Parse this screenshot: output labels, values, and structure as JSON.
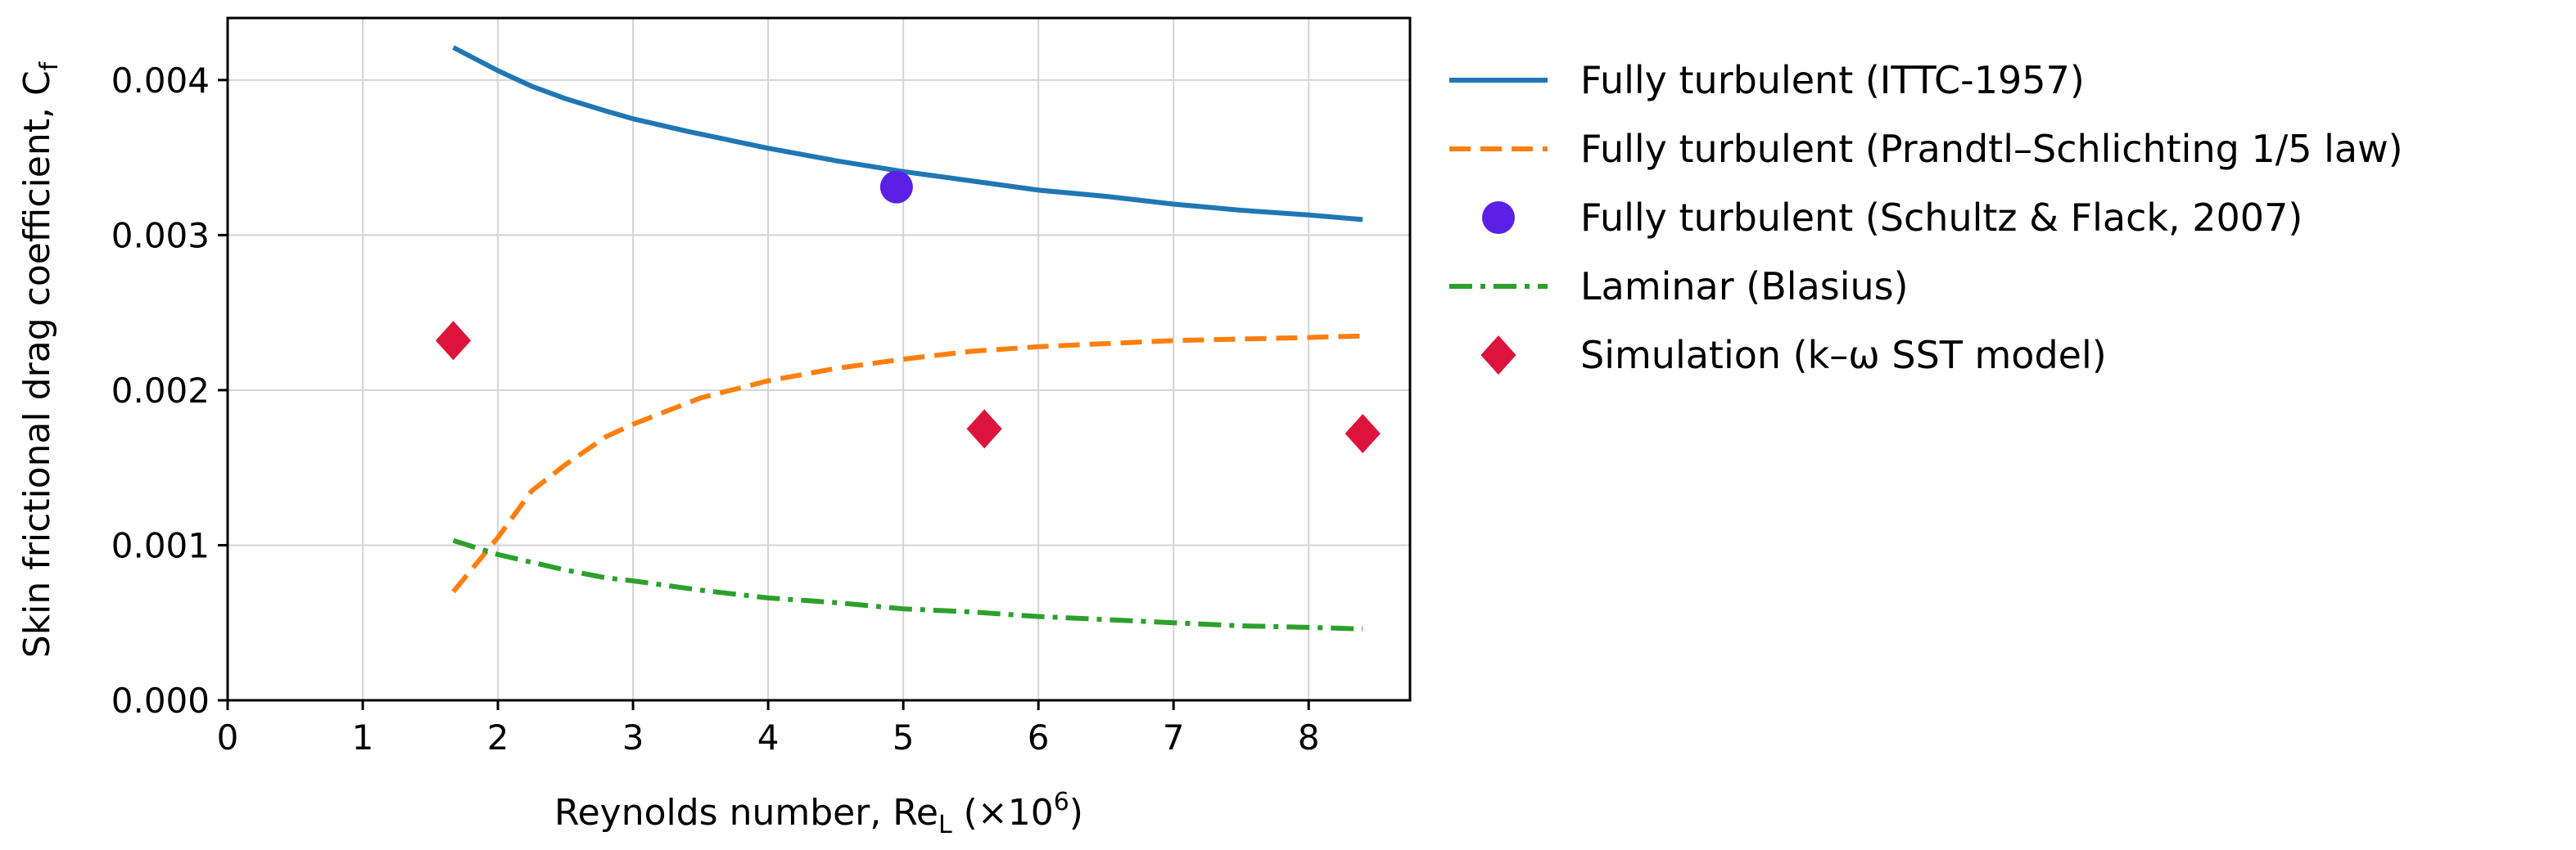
{
  "chart_data": {
    "type": "line",
    "xlabel": "Reynolds number, Re",
    "xlabel_sub": "L",
    "xlabel_unit": " (×10",
    "xlabel_exp": "6",
    "xlabel_close": ")",
    "ylabel": "Skin frictional drag coefficient, C",
    "ylabel_sub": "f",
    "xlim": [
      0,
      8.75
    ],
    "ylim": [
      0,
      0.0044
    ],
    "xticks": [
      "0",
      "1",
      "2",
      "3",
      "4",
      "5",
      "6",
      "7",
      "8"
    ],
    "yticks": [
      "0.000",
      "0.001",
      "0.002",
      "0.003",
      "0.004"
    ],
    "grid": true,
    "legend_position": "outside-right",
    "series": [
      {
        "name": "Fully turbulent (ITTC-1957)",
        "kind": "line",
        "style": "solid",
        "color": "#1f77b4",
        "x": [
          1.67,
          2.0,
          2.25,
          2.5,
          2.8,
          3.0,
          3.4,
          4.0,
          4.5,
          5.0,
          5.5,
          6.0,
          6.5,
          7.0,
          7.5,
          8.0,
          8.4
        ],
        "y": [
          0.00421,
          0.00406,
          0.00396,
          0.00388,
          0.0038,
          0.00375,
          0.00367,
          0.00356,
          0.00348,
          0.00341,
          0.00335,
          0.00329,
          0.00325,
          0.0032,
          0.00316,
          0.00313,
          0.0031
        ]
      },
      {
        "name": "Fully turbulent (Prandtl–Schlichting 1/5 law)",
        "kind": "line",
        "style": "dashed",
        "color": "#ff7f0e",
        "x": [
          1.67,
          2.0,
          2.25,
          2.5,
          2.8,
          3.0,
          3.5,
          4.0,
          4.5,
          5.0,
          5.5,
          6.0,
          6.5,
          7.0,
          7.5,
          8.0,
          8.4
        ],
        "y": [
          0.0007,
          0.00105,
          0.00135,
          0.00152,
          0.0017,
          0.00178,
          0.00195,
          0.00206,
          0.00214,
          0.0022,
          0.00225,
          0.00228,
          0.0023,
          0.00232,
          0.00233,
          0.00234,
          0.00235
        ]
      },
      {
        "name": "Fully turbulent (Schultz & Flack, 2007)",
        "kind": "scatter",
        "marker": "circle",
        "color": "#5b1fe6",
        "x": [
          4.95
        ],
        "y": [
          0.00331
        ]
      },
      {
        "name": "Laminar (Blasius)",
        "kind": "line",
        "style": "dashdot",
        "color": "#2ca02c",
        "x": [
          1.67,
          2.0,
          2.25,
          2.5,
          2.8,
          3.0,
          3.5,
          4.0,
          4.5,
          5.0,
          5.5,
          6.0,
          6.5,
          7.0,
          7.5,
          8.0,
          8.4
        ],
        "y": [
          0.00103,
          0.00094,
          0.00089,
          0.00084,
          0.00079,
          0.00077,
          0.00071,
          0.00066,
          0.00063,
          0.00059,
          0.00057,
          0.00054,
          0.00052,
          0.0005,
          0.00048,
          0.00047,
          0.00046
        ]
      },
      {
        "name": "Simulation (k–ω SST model)",
        "kind": "scatter",
        "marker": "diamond",
        "color": "#dc143c",
        "x": [
          1.67,
          5.6,
          8.4
        ],
        "y": [
          0.00232,
          0.00175,
          0.00172
        ]
      }
    ]
  }
}
